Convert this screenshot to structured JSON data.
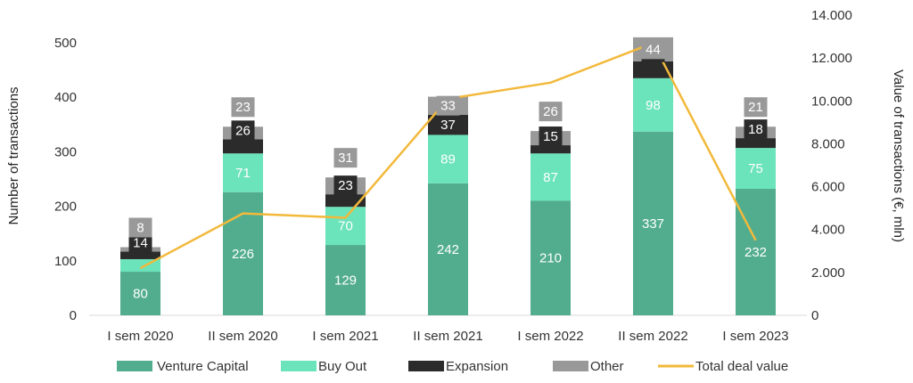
{
  "chart_data": {
    "type": "bar",
    "stacked": true,
    "categories": [
      "I sem 2020",
      "II sem 2020",
      "I sem 2021",
      "II sem 2021",
      "I sem 2022",
      "II sem 2022",
      "I sem 2023"
    ],
    "series": [
      {
        "name": "Venture Capital",
        "color": "#52ad8f",
        "values": [
          80,
          226,
          129,
          242,
          210,
          337,
          232
        ]
      },
      {
        "name": "Buy Out",
        "color": "#6be3bb",
        "values": [
          23,
          71,
          70,
          89,
          87,
          98,
          75
        ]
      },
      {
        "name": "Expansion",
        "color": "#2b2b2b",
        "values": [
          14,
          26,
          23,
          37,
          15,
          31,
          18
        ]
      },
      {
        "name": "Other",
        "color": "#999999",
        "values": [
          8,
          23,
          31,
          33,
          26,
          44,
          21
        ]
      }
    ],
    "line_series": {
      "name": "Total deal value",
      "color": "#f2b93b",
      "axis": "right",
      "values": [
        2200,
        4750,
        4550,
        10100,
        10850,
        12700,
        3500
      ]
    },
    "ylabel": "Number of transactions",
    "y2label": "Value of transactions (€, mln)",
    "ylim": [
      0,
      500
    ],
    "y2lim": [
      0,
      14000
    ],
    "yticks": [
      "0",
      "100",
      "200",
      "300",
      "400",
      "500"
    ],
    "y2ticks": [
      "0",
      "2.000",
      "4.000",
      "6.000",
      "8.000",
      "10.000",
      "12.000",
      "14.000"
    ],
    "grid": false,
    "legend_position": "bottom"
  }
}
